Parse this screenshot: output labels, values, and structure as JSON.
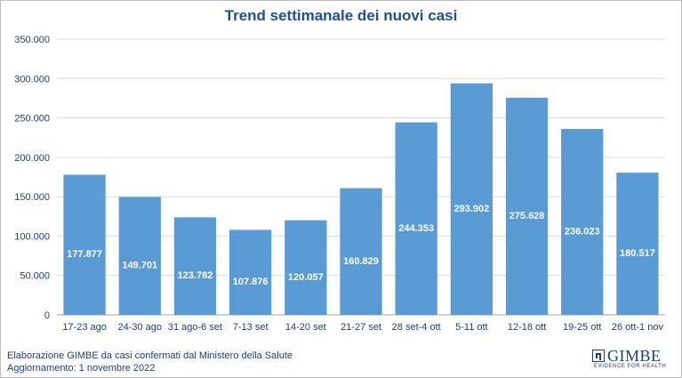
{
  "footer": {
    "line1": "Elaborazione GIMBE da casi confermati dal Ministero della Salute",
    "line2": "Aggiornamento: 1 novembre 2022"
  },
  "logo": {
    "name": "GIMBE",
    "tagline": "EVIDENCE FOR HEALTH",
    "color": "#1f3f7a"
  },
  "chart_data": {
    "type": "bar",
    "title": "Trend settimanale dei nuovi casi",
    "xlabel": "",
    "ylabel": "",
    "ylim": [
      0,
      350000
    ],
    "yticks": [
      0,
      50000,
      100000,
      150000,
      200000,
      250000,
      300000,
      350000
    ],
    "ytick_labels": [
      "0",
      "50.000",
      "100.000",
      "150.000",
      "200.000",
      "250.000",
      "300.000",
      "350.000"
    ],
    "grid": true,
    "bar_color": "#5b9bd5",
    "categories": [
      "17-23 ago",
      "24-30 ago",
      "31 ago-6 set",
      "7-13 set",
      "14-20 set",
      "21-27 set",
      "28 set-4 ott",
      "5-11 ott",
      "12-18 ott",
      "19-25 ott",
      "26 ott-1 nov"
    ],
    "values": [
      177877,
      149701,
      123782,
      107876,
      120057,
      160829,
      244353,
      293902,
      275628,
      236023,
      180517
    ],
    "data_labels": [
      "177.877",
      "149.701",
      "123.782",
      "107.876",
      "120.057",
      "160.829",
      "244.353",
      "293.902",
      "275.628",
      "236.023",
      "180.517"
    ]
  }
}
